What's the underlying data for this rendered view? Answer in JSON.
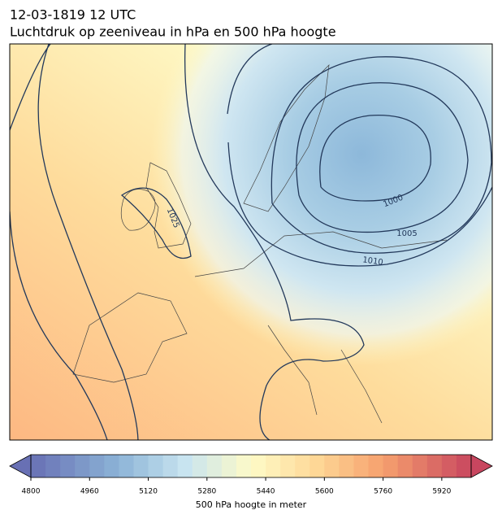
{
  "title": "12-03-1819 12 UTC",
  "subtitle": "Luchtdruk op zeeniveau in hPa en 500 hPa hoogte",
  "contour_labels": [
    1000,
    1005,
    1010,
    1025
  ],
  "colorbar": {
    "label": "500 hPa hoogte in meter",
    "lim": [
      4800,
      6000
    ],
    "ticks": [
      4800,
      4960,
      5120,
      5280,
      5440,
      5600,
      5760,
      5920
    ]
  }
}
